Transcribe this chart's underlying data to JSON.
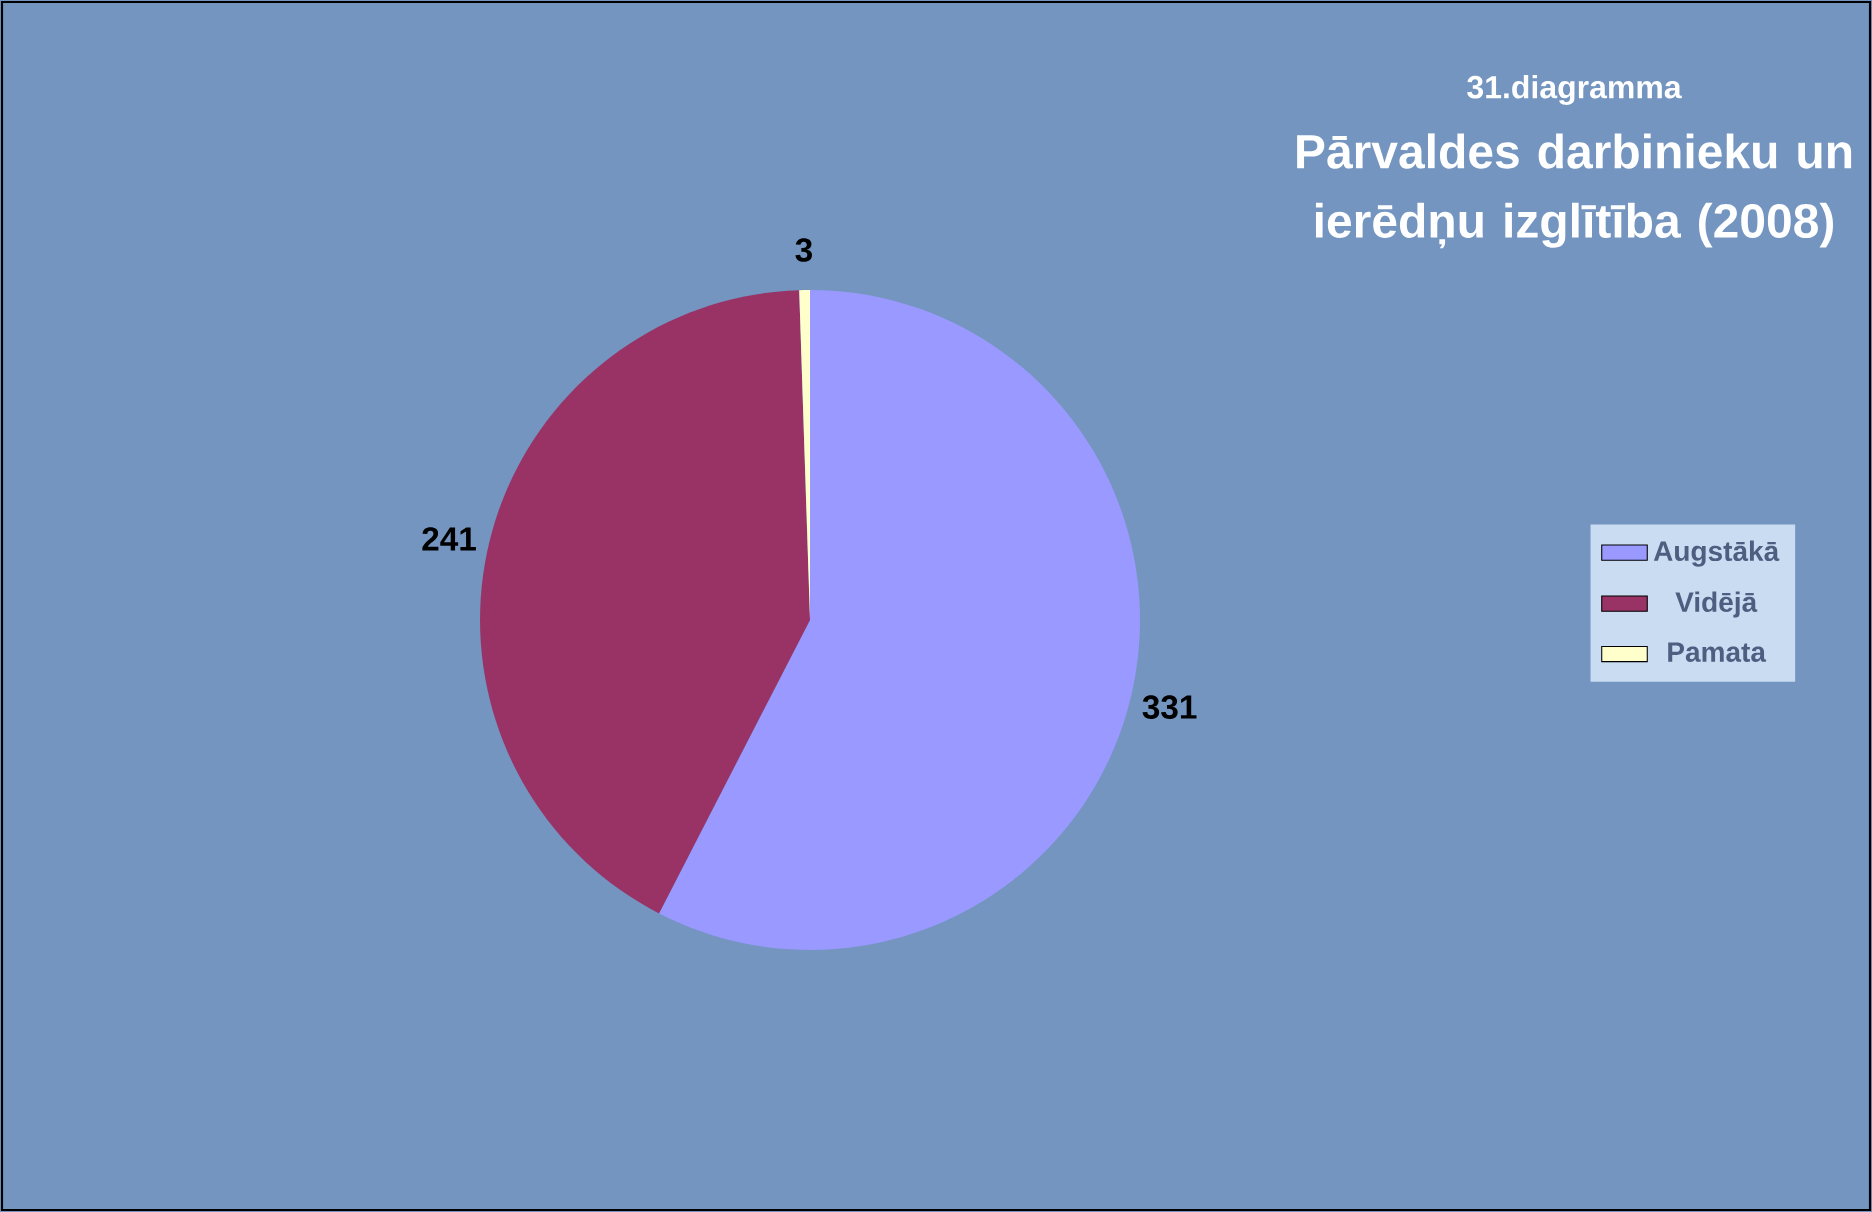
{
  "chart_data": {
    "type": "pie",
    "subtitle": "31.diagramma",
    "title": "Pārvaldes darbinieku un ierēdņu izglītība (2008)",
    "categories": [
      "Augstākā",
      "Vidējā",
      "Pamata"
    ],
    "values": [
      331,
      241,
      3
    ],
    "colors": [
      "#9999ff",
      "#993366",
      "#ffffcc"
    ],
    "data_labels": true,
    "legend": "right"
  }
}
